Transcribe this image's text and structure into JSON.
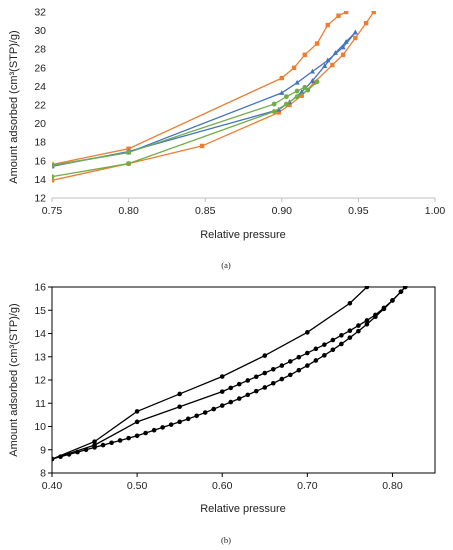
{
  "chart_data": [
    {
      "type": "line",
      "panel_label": "(a)",
      "title": "",
      "xlabel": "Relative pressure",
      "ylabel": "Amount adsorbed (cm³(STP)/g)",
      "xlim": [
        0.75,
        1.0
      ],
      "ylim": [
        12,
        32
      ],
      "xticks": [
        0.75,
        0.8,
        0.85,
        0.9,
        0.95,
        1.0
      ],
      "xtick_labels": [
        "0.75",
        "0.80",
        "0.85",
        "0.90",
        "0.95",
        "1.00"
      ],
      "yticks": [
        12,
        14,
        16,
        18,
        20,
        22,
        24,
        26,
        28,
        30,
        32
      ],
      "ytick_labels": [
        "12",
        "14",
        "16",
        "18",
        "20",
        "22",
        "24",
        "26",
        "28",
        "30",
        "32"
      ],
      "grid": false,
      "legend": "none",
      "series": [
        {
          "color": "#ED7D31",
          "marker": "square",
          "x": [
            0.75,
            0.8,
            0.848,
            0.898,
            0.905,
            0.913,
            0.921,
            0.933,
            0.94,
            0.948,
            0.955,
            0.96
          ],
          "y": [
            13.9,
            15.7,
            17.6,
            21.2,
            22.0,
            23.0,
            24.4,
            26.3,
            27.4,
            29.2,
            30.8,
            32.0
          ]
        },
        {
          "color": "#ED7D31",
          "marker": "square",
          "x": [
            0.75,
            0.8,
            0.9,
            0.908,
            0.915,
            0.923,
            0.93,
            0.937,
            0.942
          ],
          "y": [
            15.6,
            17.3,
            24.9,
            26.0,
            27.4,
            28.6,
            30.6,
            31.6,
            32.0
          ]
        },
        {
          "color": "#4472C4",
          "marker": "triangle",
          "x": [
            0.75,
            0.8,
            0.898,
            0.905,
            0.913,
            0.92,
            0.928,
            0.935,
            0.942,
            0.948
          ],
          "y": [
            15.4,
            17.0,
            21.5,
            22.3,
            23.4,
            24.6,
            26.2,
            27.6,
            28.8,
            29.8
          ]
        },
        {
          "color": "#4472C4",
          "marker": "triangle",
          "x": [
            0.75,
            0.8,
            0.9,
            0.91,
            0.92,
            0.93,
            0.94,
            0.948
          ],
          "y": [
            15.5,
            16.9,
            23.3,
            24.4,
            25.6,
            26.8,
            28.2,
            29.8
          ]
        },
        {
          "color": "#70AD47",
          "marker": "circle",
          "x": [
            0.75,
            0.8,
            0.895,
            0.903,
            0.91,
            0.917,
            0.923
          ],
          "y": [
            14.3,
            15.7,
            21.3,
            22.1,
            22.9,
            23.6,
            24.5
          ]
        },
        {
          "color": "#70AD47",
          "marker": "circle",
          "x": [
            0.75,
            0.8,
            0.895,
            0.903,
            0.91,
            0.915
          ],
          "y": [
            15.5,
            16.9,
            22.1,
            22.9,
            23.5,
            23.9
          ]
        }
      ]
    },
    {
      "type": "line",
      "panel_label": "(b)",
      "title": "",
      "xlabel": "Relative pressure",
      "ylabel": "Amount adsorbed (cm³(STP)/g)",
      "xlim": [
        0.4,
        0.85
      ],
      "ylim": [
        8,
        16
      ],
      "xticks": [
        0.4,
        0.5,
        0.6,
        0.7,
        0.8
      ],
      "xtick_labels": [
        "0.40",
        "0.50",
        "0.60",
        "0.70",
        "0.80"
      ],
      "yticks": [
        8,
        9,
        10,
        11,
        12,
        13,
        14,
        15,
        16
      ],
      "ytick_labels": [
        "8",
        "9",
        "10",
        "11",
        "12",
        "13",
        "14",
        "15",
        "16"
      ],
      "grid": false,
      "legend": "none",
      "series": [
        {
          "color": "#000000",
          "marker": "circle",
          "x": [
            0.4,
            0.41,
            0.42,
            0.43,
            0.44,
            0.45,
            0.46,
            0.47,
            0.48,
            0.49,
            0.5,
            0.51,
            0.52,
            0.53,
            0.54,
            0.55,
            0.56,
            0.57,
            0.58,
            0.59,
            0.6,
            0.61,
            0.62,
            0.63,
            0.64,
            0.65,
            0.66,
            0.67,
            0.68,
            0.69,
            0.7,
            0.71,
            0.72,
            0.73,
            0.74,
            0.75,
            0.76,
            0.77,
            0.78,
            0.79,
            0.8,
            0.81,
            0.815
          ],
          "y": [
            8.6,
            8.7,
            8.8,
            8.9,
            9.0,
            9.1,
            9.2,
            9.3,
            9.4,
            9.5,
            9.6,
            9.72,
            9.84,
            9.96,
            10.08,
            10.2,
            10.33,
            10.46,
            10.6,
            10.75,
            10.9,
            11.05,
            11.2,
            11.36,
            11.52,
            11.68,
            11.86,
            12.04,
            12.22,
            12.42,
            12.62,
            12.84,
            13.06,
            13.3,
            13.55,
            13.82,
            14.1,
            14.4,
            14.72,
            15.06,
            15.42,
            15.8,
            16.0
          ]
        },
        {
          "color": "#000000",
          "marker": "circle",
          "x": [
            0.4,
            0.45,
            0.5,
            0.55,
            0.6,
            0.61,
            0.62,
            0.63,
            0.64,
            0.65,
            0.66,
            0.67,
            0.68,
            0.69,
            0.7,
            0.71,
            0.72,
            0.73,
            0.74,
            0.75,
            0.76,
            0.77,
            0.78,
            0.79,
            0.8,
            0.81,
            0.815
          ],
          "y": [
            8.6,
            9.2,
            10.2,
            10.85,
            11.5,
            11.66,
            11.82,
            11.98,
            12.14,
            12.3,
            12.46,
            12.62,
            12.8,
            12.98,
            13.16,
            13.34,
            13.52,
            13.72,
            13.92,
            14.12,
            14.34,
            14.56,
            14.8,
            15.1,
            15.42,
            15.8,
            16.0
          ]
        },
        {
          "color": "#000000",
          "marker": "circle",
          "x": [
            0.4,
            0.45,
            0.5,
            0.55,
            0.6,
            0.65,
            0.7,
            0.75,
            0.77
          ],
          "y": [
            8.6,
            9.35,
            10.65,
            11.4,
            12.15,
            13.05,
            14.05,
            15.3,
            16.0
          ]
        }
      ]
    }
  ]
}
